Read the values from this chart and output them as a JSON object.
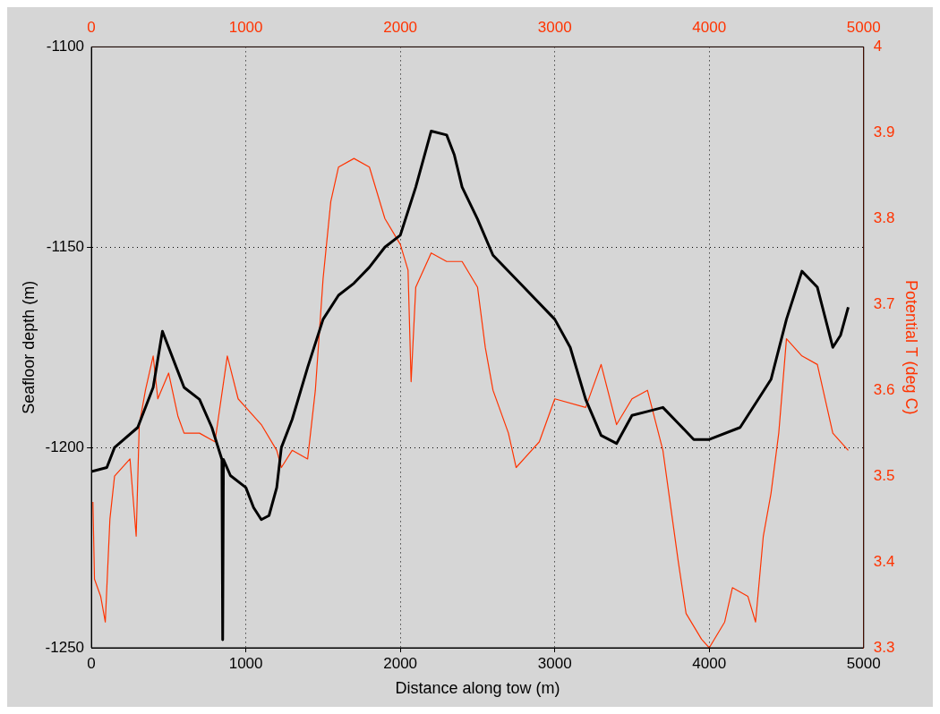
{
  "chart_data": {
    "type": "line",
    "xlabel": "Distance along tow (m)",
    "ylabel": "Seafloor depth (m)",
    "y2label": "Potential T (deg C)",
    "xlim": [
      0,
      5000
    ],
    "xticks": [
      0,
      1000,
      2000,
      3000,
      4000,
      5000
    ],
    "x2lim": [
      0,
      5000
    ],
    "x2ticks": [
      0,
      1000,
      2000,
      3000,
      4000,
      5000
    ],
    "ylim": [
      -1250,
      -1100
    ],
    "yticks": [
      -1250,
      -1200,
      -1150,
      -1100
    ],
    "y2lim": [
      3.3,
      4
    ],
    "y2ticks": [
      3.3,
      3.4,
      3.5,
      3.6,
      3.7,
      3.8,
      3.9,
      4
    ],
    "grid": true,
    "legend": false,
    "series": [
      {
        "color": "#000000",
        "x": [
          0,
          100,
          150,
          300,
          400,
          460,
          550,
          600,
          700,
          780,
          845,
          850,
          855,
          900,
          1000,
          1050,
          1100,
          1150,
          1200,
          1230,
          1300,
          1400,
          1500,
          1600,
          1700,
          1800,
          1900,
          2000,
          2100,
          2200,
          2300,
          2350,
          2400,
          2500,
          2600,
          2800,
          3000,
          3100,
          3200,
          3300,
          3400,
          3500,
          3600,
          3700,
          3800,
          3900,
          4000,
          4200,
          4400,
          4500,
          4600,
          4700,
          4800,
          4850,
          4900
        ],
        "values": [
          -1206,
          -1205,
          -1200,
          -1195,
          -1185,
          -1171,
          -1180,
          -1185,
          -1188,
          -1195,
          -1203,
          -1248,
          -1203,
          -1207,
          -1210,
          -1215,
          -1218,
          -1217,
          -1210,
          -1200,
          -1193,
          -1180,
          -1168,
          -1162,
          -1159,
          -1155,
          -1150,
          -1147,
          -1135,
          -1121,
          -1122,
          -1127,
          -1135,
          -1143,
          -1152,
          -1160,
          -1168,
          -1175,
          -1188,
          -1197,
          -1199,
          -1192,
          -1191,
          -1190,
          -1194,
          -1198,
          -1198,
          -1195,
          -1183,
          -1168,
          -1156,
          -1160,
          -1175,
          -1172,
          -1165
        ]
      },
      {
        "color": "#ff3300",
        "axis": "y2",
        "x": [
          10,
          20,
          60,
          90,
          120,
          150,
          250,
          290,
          310,
          350,
          400,
          430,
          500,
          560,
          600,
          700,
          800,
          880,
          950,
          1000,
          1100,
          1200,
          1230,
          1300,
          1400,
          1450,
          1500,
          1550,
          1600,
          1700,
          1800,
          1900,
          2000,
          2050,
          2070,
          2100,
          2200,
          2300,
          2400,
          2500,
          2550,
          2600,
          2700,
          2750,
          2900,
          3000,
          3200,
          3300,
          3400,
          3500,
          3600,
          3700,
          3800,
          3850,
          3950,
          4000,
          4100,
          4150,
          4250,
          4300,
          4350,
          4400,
          4450,
          4500,
          4600,
          4700,
          4800,
          4900
        ],
        "values": [
          3.47,
          3.38,
          3.36,
          3.33,
          3.45,
          3.5,
          3.52,
          3.43,
          3.56,
          3.6,
          3.64,
          3.59,
          3.62,
          3.57,
          3.55,
          3.55,
          3.54,
          3.64,
          3.59,
          3.58,
          3.56,
          3.53,
          3.51,
          3.53,
          3.52,
          3.6,
          3.73,
          3.82,
          3.86,
          3.87,
          3.86,
          3.8,
          3.77,
          3.74,
          3.61,
          3.72,
          3.76,
          3.75,
          3.75,
          3.72,
          3.65,
          3.6,
          3.55,
          3.51,
          3.54,
          3.59,
          3.58,
          3.63,
          3.56,
          3.59,
          3.6,
          3.53,
          3.4,
          3.34,
          3.31,
          3.3,
          3.33,
          3.37,
          3.36,
          3.33,
          3.43,
          3.48,
          3.55,
          3.66,
          3.64,
          3.63,
          3.55,
          3.53
        ]
      }
    ]
  }
}
